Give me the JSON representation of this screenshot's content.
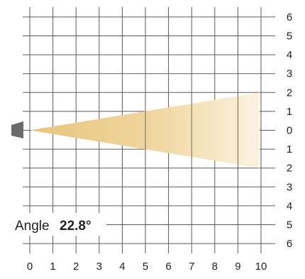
{
  "diagram": {
    "x_ticks": [
      "0",
      "1",
      "2",
      "3",
      "4",
      "5",
      "6",
      "7",
      "8",
      "9",
      "10"
    ],
    "y_ticks": [
      "6",
      "5",
      "4",
      "3",
      "2",
      "1",
      "0",
      "1",
      "2",
      "3",
      "4",
      "5",
      "6"
    ],
    "angle": {
      "label": "Angle",
      "value": "22.8°"
    },
    "beam": {
      "angle_deg": 22.8,
      "reach": 10,
      "half_spread_at_reach": 2.0,
      "inner_lines_at": [
        5,
        7,
        9
      ]
    },
    "colors": {
      "grid": "#5a5a5a",
      "beam_warm": "#e8c47c",
      "beam_fade": "#fbf2e0",
      "source": "#6b6b6b",
      "text": "#222222"
    }
  }
}
